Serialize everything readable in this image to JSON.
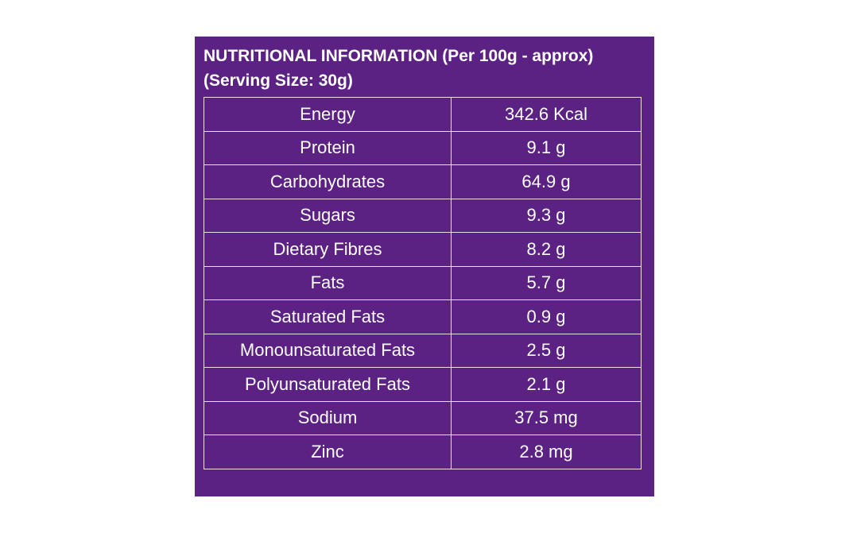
{
  "header": {
    "line1": "NUTRITIONAL INFORMATION (Per 100g - approx)",
    "line2": "(Serving Size: 30g)"
  },
  "colors": {
    "panel_background": "#5b2283",
    "text": "#ffffff",
    "grid_lines": "#e9e1f0"
  },
  "rows": [
    {
      "nutrient": "Energy",
      "amount": "342.6 Kcal"
    },
    {
      "nutrient": "Protein",
      "amount": "9.1 g"
    },
    {
      "nutrient": "Carbohydrates",
      "amount": "64.9 g"
    },
    {
      "nutrient": "Sugars",
      "amount": "9.3 g"
    },
    {
      "nutrient": "Dietary Fibres",
      "amount": "8.2 g"
    },
    {
      "nutrient": "Fats",
      "amount": "5.7 g"
    },
    {
      "nutrient": "Saturated Fats",
      "amount": "0.9 g"
    },
    {
      "nutrient": "Monounsaturated Fats",
      "amount": "2.5 g"
    },
    {
      "nutrient": "Polyunsaturated Fats",
      "amount": "2.1 g"
    },
    {
      "nutrient": "Sodium",
      "amount": "37.5 mg"
    },
    {
      "nutrient": "Zinc",
      "amount": "2.8 mg"
    }
  ]
}
